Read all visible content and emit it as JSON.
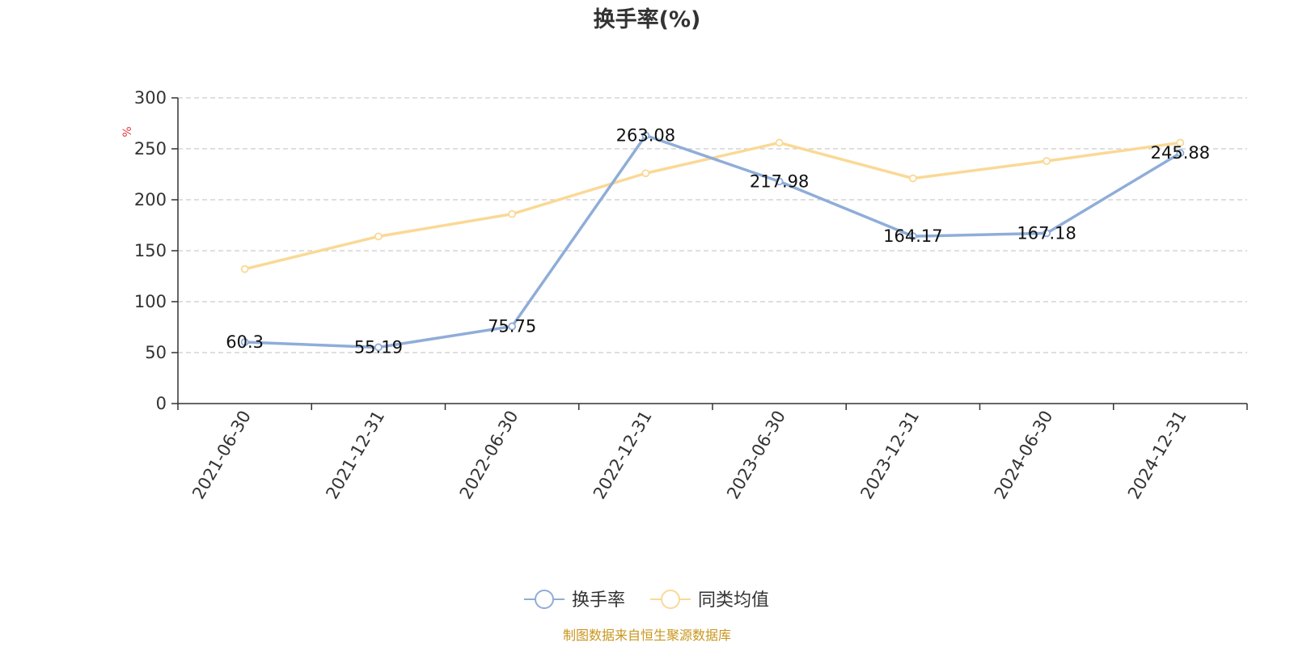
{
  "chart_data": {
    "type": "line",
    "title": "换手率(%)",
    "ylabel": "%",
    "xlabel": "",
    "categories": [
      "2021-06-30",
      "2021-12-31",
      "2022-06-30",
      "2022-12-31",
      "2023-06-30",
      "2023-12-31",
      "2024-06-30",
      "2024-12-31"
    ],
    "ylim": [
      0,
      300
    ],
    "yticks": [
      0,
      50,
      100,
      150,
      200,
      250,
      300
    ],
    "grid": true,
    "legend_position": "bottom",
    "series": [
      {
        "name": "换手率",
        "color": "#8fadd8",
        "values": [
          60.3,
          55.19,
          75.75,
          263.08,
          217.98,
          164.17,
          167.18,
          245.88
        ],
        "labels": [
          "60.3",
          "55.19",
          "75.75",
          "263.08",
          "217.98",
          "164.17",
          "167.18",
          "245.88"
        ]
      },
      {
        "name": "同类均值",
        "color": "#fad996",
        "values": [
          132,
          164,
          186,
          226,
          256,
          221,
          238,
          256
        ]
      }
    ],
    "source_note": "制图数据来自恒生聚源数据库"
  }
}
